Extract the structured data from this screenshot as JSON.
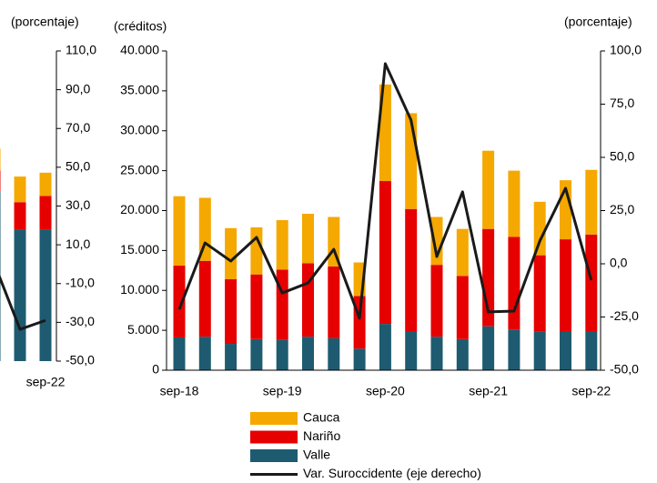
{
  "chart_data": [
    {
      "type": "bar",
      "categories": [
        null,
        null,
        "sep-22"
      ],
      "y2label": "(porcentaje)",
      "ylim": [
        0,
        40000
      ],
      "y2lim": [
        -50,
        110
      ],
      "y2ticks": [
        {
          "value": 110,
          "label": "110,0"
        },
        {
          "value": 90,
          "label": "90,0"
        },
        {
          "value": 70,
          "label": "70,0"
        },
        {
          "value": 50,
          "label": "50,0"
        },
        {
          "value": 30,
          "label": "30,0"
        },
        {
          "value": 10,
          "label": "10,0"
        },
        {
          "value": -10,
          "label": "-10,0"
        },
        {
          "value": -30,
          "label": "-30,0"
        },
        {
          "value": -50,
          "label": "-50,0"
        }
      ],
      "series": [
        {
          "color": "#f5a800",
          "values": [
            2800,
            3300,
            3000
          ]
        },
        {
          "color": "#e60000",
          "values": [
            2700,
            3500,
            4300
          ]
        },
        {
          "color": "#1e5b70",
          "values": [
            21900,
            17000,
            17000
          ]
        },
        {
          "color": "#1a1a1a",
          "axis": "y2",
          "values": [
            0,
            -33.6,
            -29
          ]
        }
      ]
    },
    {
      "type": "bar",
      "categories": [
        "sep-18",
        null,
        null,
        null,
        "sep-19",
        null,
        null,
        null,
        "sep-20",
        null,
        null,
        null,
        "sep-21",
        null,
        null,
        null,
        "sep-22"
      ],
      "ylabel": "(créditos)",
      "y2label": "(porcentaje)",
      "ylim": [
        0,
        40000
      ],
      "yticks": [
        0,
        {
          "value": 5000,
          "label": "5.000"
        },
        {
          "value": 10000,
          "label": "10.000"
        },
        {
          "value": 15000,
          "label": "15.000"
        },
        {
          "value": 20000,
          "label": "20.000"
        },
        {
          "value": 25000,
          "label": "25.000"
        },
        {
          "value": 30000,
          "label": "30.000"
        },
        {
          "value": 35000,
          "label": "35.000"
        },
        {
          "value": 40000,
          "label": "40.000"
        }
      ],
      "y2lim": [
        -50,
        100
      ],
      "y2ticks": [
        {
          "value": 100,
          "label": "100,0"
        },
        {
          "value": 75,
          "label": "75,0"
        },
        {
          "value": 50,
          "label": "50,0"
        },
        {
          "value": 25,
          "label": "25,0"
        },
        {
          "value": 0,
          "label": "0,0"
        },
        {
          "value": -25,
          "label": "-25,0"
        },
        {
          "value": -50,
          "label": "-50,0"
        }
      ],
      "series": [
        {
          "name": "Cauca",
          "color": "#f5a800",
          "values": [
            8700,
            7900,
            6400,
            5900,
            6200,
            6200,
            6200,
            4200,
            12100,
            12000,
            6000,
            5900,
            9800,
            8300,
            6700,
            7400,
            8100
          ]
        },
        {
          "name": "Nariño",
          "color": "#e60000",
          "values": [
            9000,
            9500,
            8100,
            8100,
            8800,
            9200,
            9000,
            6600,
            17900,
            15300,
            9000,
            7900,
            12200,
            11600,
            9600,
            11500,
            12100
          ]
        },
        {
          "name": "Valle",
          "color": "#1e5b70",
          "values": [
            4100,
            4200,
            3300,
            3900,
            3800,
            4200,
            4000,
            2700,
            5800,
            4900,
            4200,
            3900,
            5500,
            5100,
            4800,
            4900,
            4900
          ]
        },
        {
          "name": "Var. Suroccidente (eje derecho)",
          "color": "#1a1a1a",
          "axis": "y2",
          "values": [
            -21.4,
            9.8,
            1.3,
            12.4,
            -13.7,
            -9.0,
            6.8,
            -25.6,
            94.0,
            67.5,
            3.4,
            33.8,
            -22.6,
            -22.2,
            10.7,
            35.5,
            -7.7
          ]
        }
      ]
    }
  ]
}
